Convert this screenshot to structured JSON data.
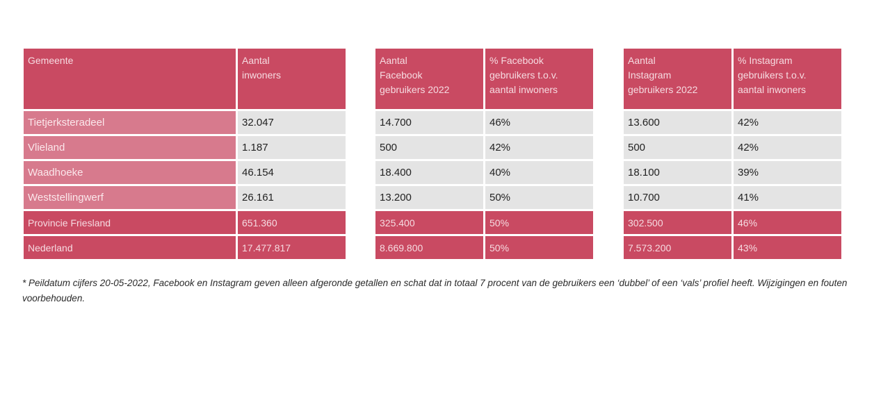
{
  "tables": {
    "gemeente": {
      "headers": [
        "Gemeente",
        "Aantal\ninwoners"
      ],
      "rows": [
        [
          "Tietjerksteradeel",
          "32.047"
        ],
        [
          "Vlieland",
          "1.187"
        ],
        [
          "Waadhoeke",
          "46.154"
        ],
        [
          "Weststellingwerf",
          "26.161"
        ],
        [
          "Provincie Friesland",
          "651.360"
        ],
        [
          "Nederland",
          "17.477.817"
        ]
      ]
    },
    "facebook": {
      "headers": [
        "Aantal\nFacebook\ngebruikers 2022",
        "% Facebook\ngebruikers t.o.v.\naantal inwoners"
      ],
      "rows": [
        [
          "14.700",
          "46%"
        ],
        [
          "500",
          "42%"
        ],
        [
          "18.400",
          "40%"
        ],
        [
          "13.200",
          "50%"
        ],
        [
          "325.400",
          "50%"
        ],
        [
          "8.669.800",
          "50%"
        ]
      ]
    },
    "instagram": {
      "headers": [
        "Aantal\nInstagram\ngebruikers 2022",
        "% Instagram\ngebruikers t.o.v.\naantal inwoners"
      ],
      "rows": [
        [
          "13.600",
          "42%"
        ],
        [
          "500",
          "42%"
        ],
        [
          "18.100",
          "39%"
        ],
        [
          "10.700",
          "41%"
        ],
        [
          "302.500",
          "46%"
        ],
        [
          "7.573.200",
          "43%"
        ]
      ]
    }
  },
  "footnote": "* Peildatum cijfers 20-05-2022, Facebook en Instagram geven alleen afgeronde getallen en schat dat in totaal 7 procent van de gebruikers een ‘dubbel’ of een ‘vals’ profiel heeft. Wijzigingen en fouten voorbehouden.",
  "colors": {
    "header_bg": "#c94a62",
    "name_bg": "#d77a8d",
    "data_bg": "#e4e4e4",
    "header_text": "#f6dbe1"
  }
}
